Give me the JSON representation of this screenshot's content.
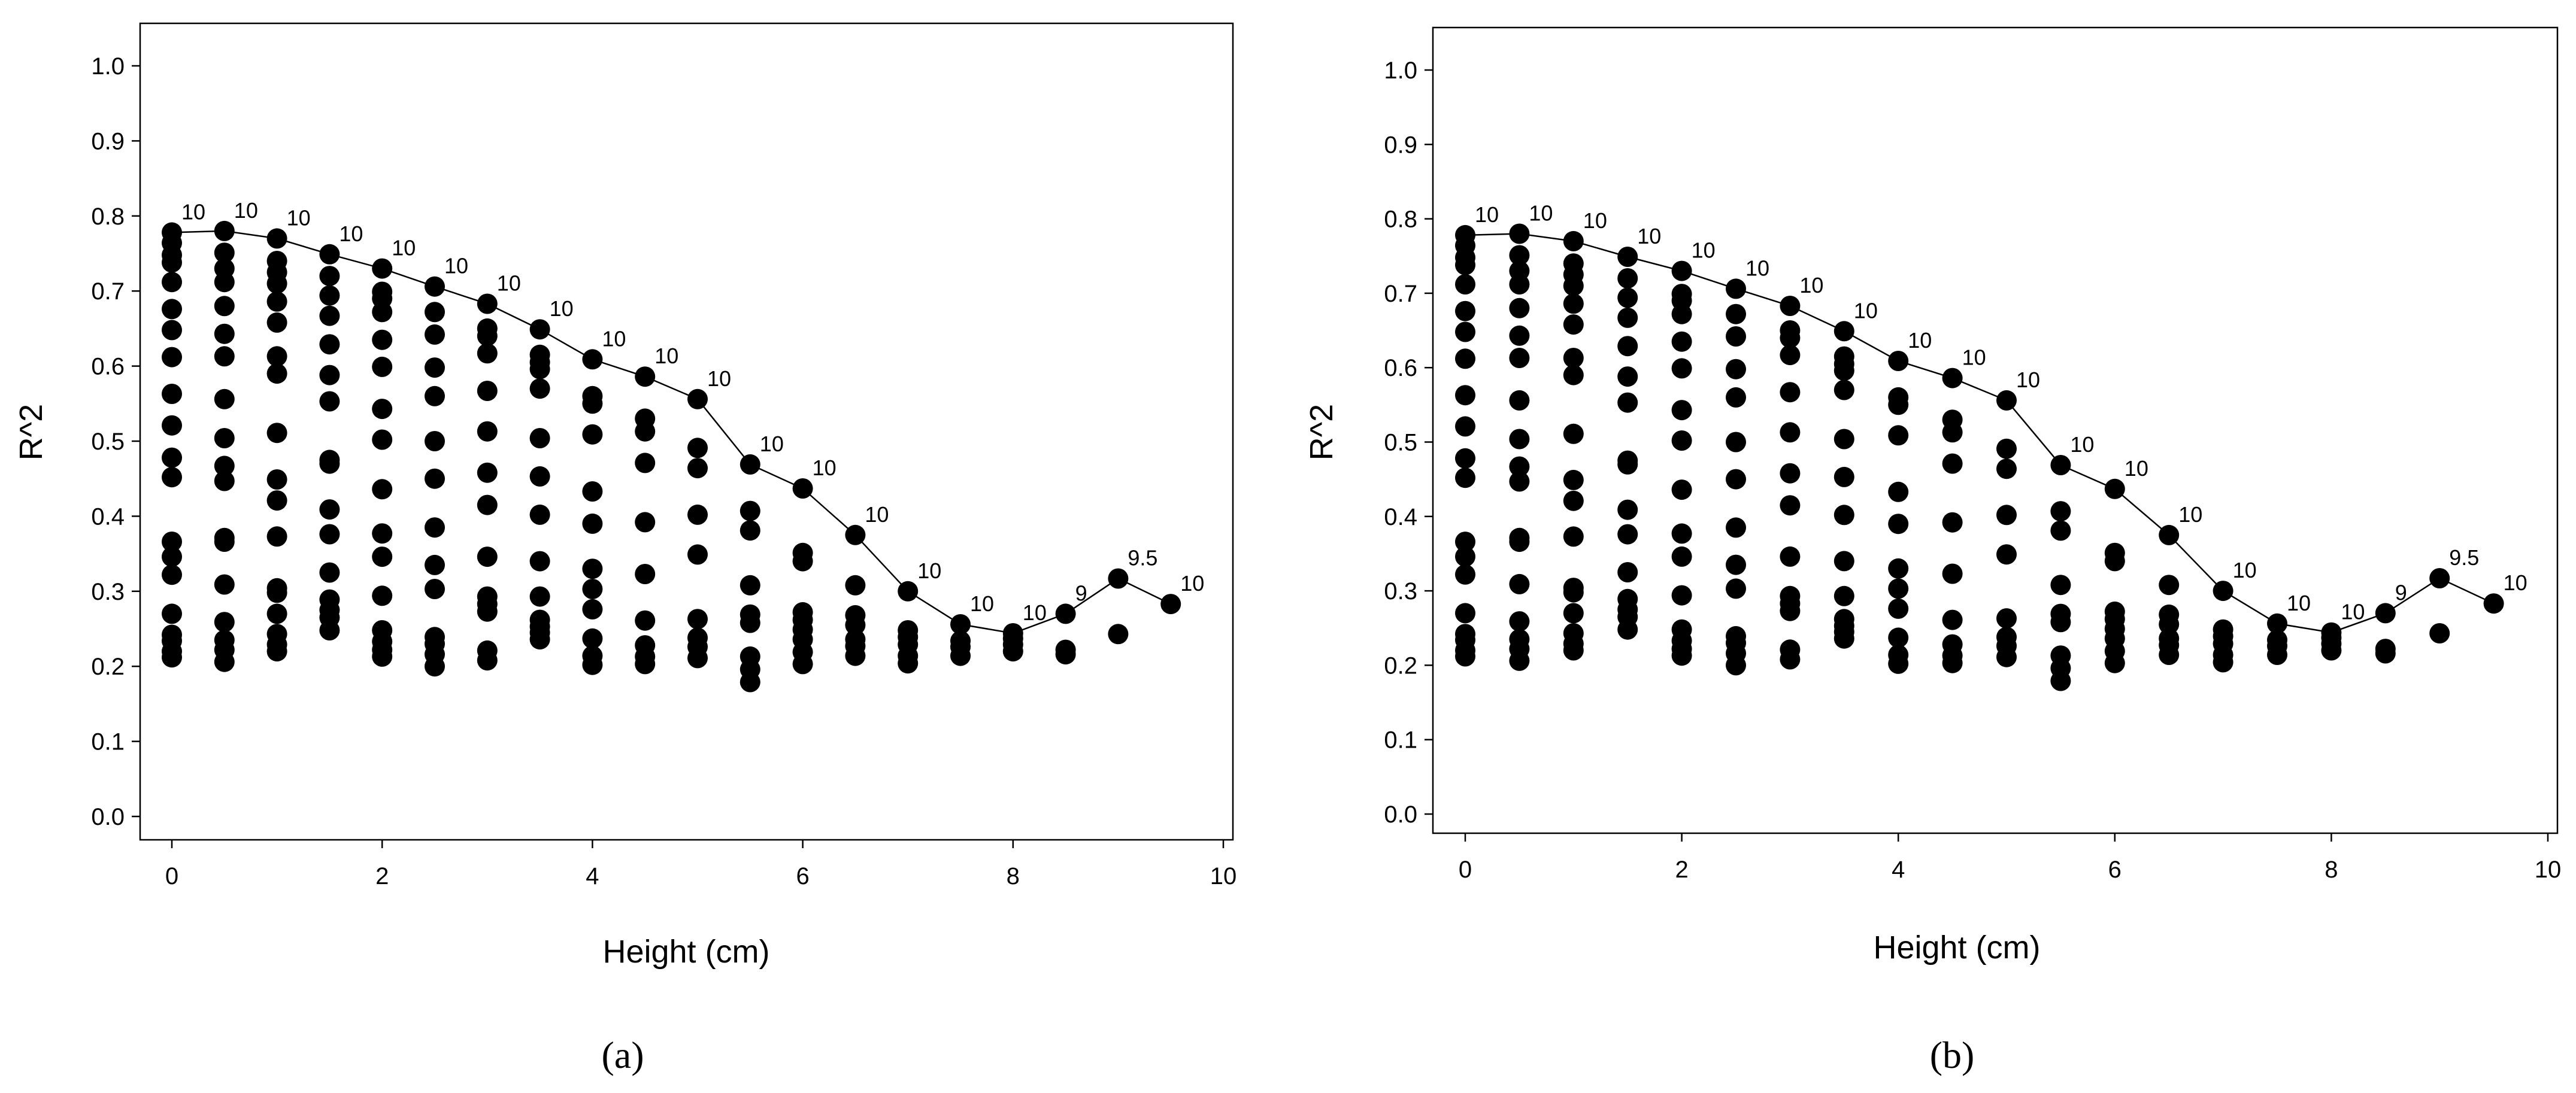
{
  "chart_data": [
    {
      "type": "scatter",
      "panel_label": "(a)",
      "xlabel": "Height (cm)",
      "ylabel": "R^2",
      "xlim": [
        0,
        10
      ],
      "ylim": [
        0,
        1
      ],
      "x_ticks": [
        "0",
        "2",
        "4",
        "6",
        "8",
        "10"
      ],
      "y_ticks": [
        "0.0",
        "0.1",
        "0.2",
        "0.3",
        "0.4",
        "0.5",
        "0.6",
        "0.7",
        "0.8",
        "0.9",
        "1.0"
      ],
      "grid": false,
      "series": [
        {
          "points": [
            {
              "x": 0,
              "y": [
                0.778,
                0.764,
                0.748,
                0.738,
                0.712,
                0.676,
                0.648,
                0.612,
                0.563,
                0.521,
                0.478,
                0.452,
                0.366,
                0.346,
                0.322,
                0.27,
                0.242,
                0.234,
                0.22,
                0.212
              ]
            },
            {
              "x": 0.5,
              "y": [
                0.78,
                0.751,
                0.73,
                0.712,
                0.68,
                0.643,
                0.613,
                0.556,
                0.504,
                0.467,
                0.447,
                0.371,
                0.366,
                0.309,
                0.259,
                0.235,
                0.222,
                0.206
              ]
            },
            {
              "x": 1,
              "y": [
                0.77,
                0.74,
                0.725,
                0.71,
                0.686,
                0.658,
                0.613,
                0.59,
                0.511,
                0.449,
                0.421,
                0.373,
                0.304,
                0.298,
                0.27,
                0.243,
                0.229,
                0.22
              ]
            },
            {
              "x": 1.5,
              "y": [
                0.749,
                0.72,
                0.694,
                0.667,
                0.629,
                0.588,
                0.553,
                0.475,
                0.47,
                0.409,
                0.376,
                0.325,
                0.289,
                0.275,
                0.265,
                0.248
              ]
            },
            {
              "x": 2,
              "y": [
                0.73,
                0.699,
                0.69,
                0.672,
                0.635,
                0.599,
                0.543,
                0.502,
                0.436,
                0.377,
                0.346,
                0.294,
                0.248,
                0.233,
                0.222,
                0.213
              ]
            },
            {
              "x": 2.5,
              "y": [
                0.706,
                0.672,
                0.642,
                0.598,
                0.56,
                0.5,
                0.45,
                0.385,
                0.335,
                0.303,
                0.239,
                0.23,
                0.216,
                0.2
              ]
            },
            {
              "x": 3,
              "y": [
                0.683,
                0.65,
                0.64,
                0.617,
                0.567,
                0.513,
                0.458,
                0.415,
                0.346,
                0.293,
                0.283,
                0.273,
                0.221,
                0.208
              ]
            },
            {
              "x": 3.5,
              "y": [
                0.649,
                0.615,
                0.605,
                0.596,
                0.57,
                0.504,
                0.453,
                0.402,
                0.34,
                0.293,
                0.262,
                0.253,
                0.245,
                0.236
              ]
            },
            {
              "x": 4,
              "y": [
                0.609,
                0.56,
                0.55,
                0.509,
                0.433,
                0.39,
                0.33,
                0.303,
                0.276,
                0.237,
                0.214,
                0.202
              ]
            },
            {
              "x": 4.5,
              "y": [
                0.586,
                0.53,
                0.513,
                0.471,
                0.392,
                0.323,
                0.261,
                0.228,
                0.213,
                0.203
              ]
            },
            {
              "x": 5,
              "y": [
                0.556,
                0.491,
                0.464,
                0.402,
                0.349,
                0.263,
                0.238,
                0.226,
                0.211
              ]
            },
            {
              "x": 5.5,
              "y": [
                0.469,
                0.407,
                0.381,
                0.308,
                0.269,
                0.258,
                0.213,
                0.196,
                0.179
              ]
            },
            {
              "x": 6,
              "y": [
                0.437,
                0.351,
                0.34,
                0.272,
                0.262,
                0.249,
                0.236,
                0.219,
                0.203
              ]
            },
            {
              "x": 6.5,
              "y": [
                0.375,
                0.308,
                0.268,
                0.255,
                0.236,
                0.227,
                0.214
              ]
            },
            {
              "x": 7,
              "y": [
                0.3,
                0.248,
                0.239,
                0.229,
                0.214,
                0.204
              ]
            },
            {
              "x": 7.5,
              "y": [
                0.256,
                0.234,
                0.226,
                0.214
              ]
            },
            {
              "x": 8,
              "y": [
                0.244,
                0.237,
                0.229,
                0.22
              ]
            },
            {
              "x": 8.5,
              "y": [
                0.27,
                0.222,
                0.216
              ]
            },
            {
              "x": 9,
              "y": [
                0.317,
                0.243
              ]
            },
            {
              "x": 9.5,
              "y": [
                0.283
              ]
            }
          ]
        }
      ],
      "trend_line": {
        "x": [
          0,
          0.5,
          1,
          1.5,
          2,
          2.5,
          3,
          3.5,
          4,
          4.5,
          5,
          5.5,
          6,
          6.5,
          7,
          7.5,
          8,
          8.5,
          9,
          9.5
        ],
        "y": [
          0.778,
          0.78,
          0.77,
          0.749,
          0.73,
          0.706,
          0.683,
          0.649,
          0.609,
          0.586,
          0.556,
          0.469,
          0.437,
          0.375,
          0.3,
          0.256,
          0.244,
          0.27,
          0.317,
          0.283
        ],
        "labels": [
          "10",
          "10",
          "10",
          "10",
          "10",
          "10",
          "10",
          "10",
          "10",
          "10",
          "10",
          "10",
          "10",
          "10",
          "10",
          "10",
          "10",
          "9",
          "9.5",
          "10"
        ]
      }
    },
    {
      "type": "scatter",
      "panel_label": "(b)",
      "xlabel": "Height (cm)",
      "ylabel": "R^2",
      "xlim": [
        0,
        10
      ],
      "ylim": [
        0,
        1
      ],
      "x_ticks": [
        "0",
        "2",
        "4",
        "6",
        "8",
        "10"
      ],
      "y_ticks": [
        "0.0",
        "0.1",
        "0.2",
        "0.3",
        "0.4",
        "0.5",
        "0.6",
        "0.7",
        "0.8",
        "0.9",
        "1.0"
      ],
      "grid": false,
      "series": [
        {
          "points": [
            {
              "x": 0,
              "y": [
                0.778,
                0.764,
                0.748,
                0.738,
                0.712,
                0.676,
                0.648,
                0.612,
                0.563,
                0.521,
                0.478,
                0.452,
                0.366,
                0.346,
                0.322,
                0.27,
                0.242,
                0.234,
                0.22,
                0.212
              ]
            },
            {
              "x": 0.5,
              "y": [
                0.78,
                0.751,
                0.73,
                0.712,
                0.68,
                0.643,
                0.613,
                0.556,
                0.504,
                0.467,
                0.447,
                0.371,
                0.366,
                0.309,
                0.259,
                0.235,
                0.222,
                0.206
              ]
            },
            {
              "x": 1,
              "y": [
                0.77,
                0.74,
                0.725,
                0.71,
                0.686,
                0.658,
                0.613,
                0.59,
                0.511,
                0.449,
                0.421,
                0.373,
                0.304,
                0.298,
                0.27,
                0.243,
                0.229,
                0.22
              ]
            },
            {
              "x": 1.5,
              "y": [
                0.749,
                0.72,
                0.694,
                0.667,
                0.629,
                0.588,
                0.553,
                0.475,
                0.47,
                0.409,
                0.376,
                0.325,
                0.289,
                0.275,
                0.265,
                0.248
              ]
            },
            {
              "x": 2,
              "y": [
                0.73,
                0.699,
                0.69,
                0.672,
                0.635,
                0.599,
                0.543,
                0.502,
                0.436,
                0.377,
                0.346,
                0.294,
                0.248,
                0.233,
                0.222,
                0.213
              ]
            },
            {
              "x": 2.5,
              "y": [
                0.706,
                0.672,
                0.642,
                0.598,
                0.56,
                0.5,
                0.45,
                0.385,
                0.335,
                0.303,
                0.239,
                0.23,
                0.216,
                0.2
              ]
            },
            {
              "x": 3,
              "y": [
                0.683,
                0.65,
                0.64,
                0.617,
                0.567,
                0.513,
                0.458,
                0.415,
                0.346,
                0.293,
                0.283,
                0.273,
                0.221,
                0.208
              ]
            },
            {
              "x": 3.5,
              "y": [
                0.649,
                0.615,
                0.605,
                0.596,
                0.57,
                0.504,
                0.453,
                0.402,
                0.34,
                0.293,
                0.262,
                0.253,
                0.245,
                0.236
              ]
            },
            {
              "x": 4,
              "y": [
                0.609,
                0.56,
                0.55,
                0.509,
                0.433,
                0.39,
                0.33,
                0.303,
                0.276,
                0.237,
                0.214,
                0.202
              ]
            },
            {
              "x": 4.5,
              "y": [
                0.586,
                0.53,
                0.513,
                0.471,
                0.392,
                0.323,
                0.261,
                0.228,
                0.213,
                0.203
              ]
            },
            {
              "x": 5,
              "y": [
                0.556,
                0.491,
                0.464,
                0.402,
                0.349,
                0.263,
                0.238,
                0.226,
                0.211
              ]
            },
            {
              "x": 5.5,
              "y": [
                0.469,
                0.407,
                0.381,
                0.308,
                0.269,
                0.258,
                0.213,
                0.196,
                0.179
              ]
            },
            {
              "x": 6,
              "y": [
                0.437,
                0.351,
                0.34,
                0.272,
                0.262,
                0.249,
                0.236,
                0.219,
                0.203
              ]
            },
            {
              "x": 6.5,
              "y": [
                0.375,
                0.308,
                0.268,
                0.255,
                0.236,
                0.227,
                0.214
              ]
            },
            {
              "x": 7,
              "y": [
                0.3,
                0.248,
                0.239,
                0.229,
                0.214,
                0.204
              ]
            },
            {
              "x": 7.5,
              "y": [
                0.256,
                0.234,
                0.226,
                0.214
              ]
            },
            {
              "x": 8,
              "y": [
                0.244,
                0.237,
                0.229,
                0.22
              ]
            },
            {
              "x": 8.5,
              "y": [
                0.27,
                0.222,
                0.216
              ]
            },
            {
              "x": 9,
              "y": [
                0.317,
                0.243
              ]
            },
            {
              "x": 9.5,
              "y": [
                0.283
              ]
            }
          ]
        }
      ],
      "trend_line": {
        "x": [
          0,
          0.5,
          1,
          1.5,
          2,
          2.5,
          3,
          3.5,
          4,
          4.5,
          5,
          5.5,
          6,
          6.5,
          7,
          7.5,
          8,
          8.5,
          9,
          9.5
        ],
        "y": [
          0.778,
          0.78,
          0.77,
          0.749,
          0.73,
          0.706,
          0.683,
          0.649,
          0.609,
          0.586,
          0.556,
          0.469,
          0.437,
          0.375,
          0.3,
          0.256,
          0.244,
          0.27,
          0.317,
          0.283
        ],
        "labels": [
          "10",
          "10",
          "10",
          "10",
          "10",
          "10",
          "10",
          "10",
          "10",
          "10",
          "10",
          "10",
          "10",
          "10",
          "10",
          "10",
          "10",
          "9",
          "9.5",
          "10"
        ]
      }
    }
  ]
}
